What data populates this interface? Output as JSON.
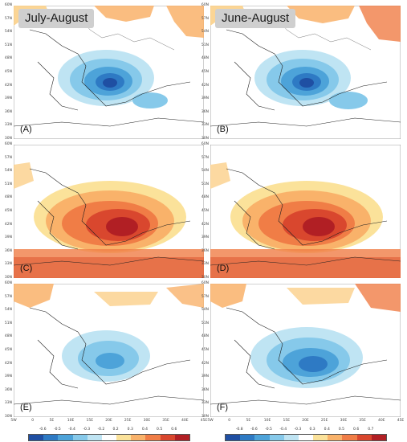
{
  "headers": {
    "left": "July-August",
    "right": "June-August"
  },
  "panel_letters": [
    "(A)",
    "(B)",
    "(C)",
    "(D)",
    "(E)",
    "(F)"
  ],
  "lat_ticks": [
    "60N",
    "57N",
    "54N",
    "51N",
    "48N",
    "45N",
    "42N",
    "39N",
    "36N",
    "33N",
    "30N"
  ],
  "lon_ticks": [
    "5W",
    "0",
    "5E",
    "10E",
    "15E",
    "20E",
    "25E",
    "30E",
    "35E",
    "40E",
    "45E"
  ],
  "colorbar_left": {
    "labels": [
      "-0.6",
      "-0.5",
      "-0.4",
      "-0.3",
      "-0.2",
      "0.2",
      "0.3",
      "0.4",
      "0.5",
      "0.6"
    ],
    "colors": [
      "#1f4fa3",
      "#2e7ac4",
      "#4da3d9",
      "#86c9ea",
      "#bfe4f3",
      "#ffffff",
      "#fbe29a",
      "#f9b26a",
      "#f07d46",
      "#d9472e",
      "#b11f24"
    ]
  },
  "colorbar_right": {
    "labels": [
      "-0.8",
      "-0.6",
      "-0.5",
      "-0.4",
      "-0.3",
      "0.3",
      "0.4",
      "0.5",
      "0.6",
      "0.7"
    ],
    "colors": [
      "#1f4fa3",
      "#2e7ac4",
      "#4da3d9",
      "#86c9ea",
      "#bfe4f3",
      "#ffffff",
      "#fbe29a",
      "#f9b26a",
      "#f07d46",
      "#d9472e",
      "#b11f24"
    ]
  },
  "panels": [
    {
      "letter_index": 0,
      "pattern": "negative-strong"
    },
    {
      "letter_index": 1,
      "pattern": "negative-strong"
    },
    {
      "letter_index": 2,
      "pattern": "positive-strong"
    },
    {
      "letter_index": 3,
      "pattern": "positive-strong"
    },
    {
      "letter_index": 4,
      "pattern": "negative-weak"
    },
    {
      "letter_index": 5,
      "pattern": "negative-medium"
    }
  ]
}
